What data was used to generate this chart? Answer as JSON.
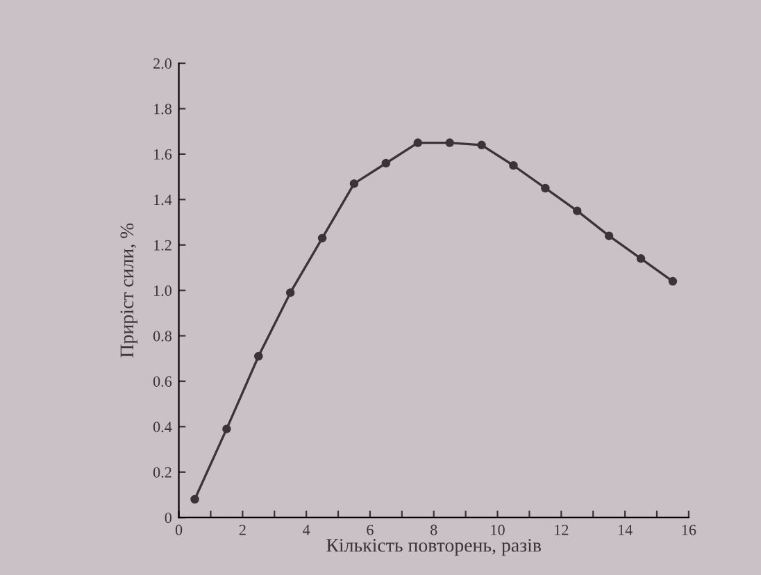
{
  "chart_data": {
    "type": "line",
    "xlabel": "Кількість повторень, разів",
    "ylabel": "Приріст сили, %",
    "x": [
      0.5,
      1.5,
      2.5,
      3.5,
      4.5,
      5.5,
      6.5,
      7.5,
      8.5,
      9.5,
      10.5,
      11.5,
      12.5,
      13.5,
      14.5,
      15.5
    ],
    "series": [
      {
        "color": "#3a3438",
        "values": [
          0.08,
          0.39,
          0.71,
          0.99,
          1.23,
          1.47,
          1.56,
          1.65,
          1.65,
          1.64,
          1.55,
          1.45,
          1.35,
          1.24,
          1.14,
          1.04
        ]
      }
    ],
    "xlim": [
      0,
      16
    ],
    "ylim": [
      0,
      2.0
    ],
    "xticks": [
      0,
      {
        "value": 1,
        "label": null
      },
      2,
      {
        "value": 3,
        "label": null
      },
      4,
      {
        "value": 5,
        "label": null
      },
      6,
      {
        "value": 7,
        "label": null
      },
      8,
      {
        "value": 9,
        "label": null
      },
      10,
      {
        "value": 11,
        "label": null
      },
      12,
      {
        "value": 13,
        "label": null
      },
      14,
      {
        "value": 15,
        "label": null
      },
      16
    ],
    "yticks": [
      0,
      0.2,
      0.4,
      0.6,
      0.8,
      {
        "value": 1.0,
        "label": "1.0"
      },
      1.2,
      1.4,
      1.6,
      1.8,
      {
        "value": 2.0,
        "label": "2.0"
      }
    ],
    "marker": "circle",
    "line_style": "solid",
    "grid": false,
    "legend": false
  }
}
